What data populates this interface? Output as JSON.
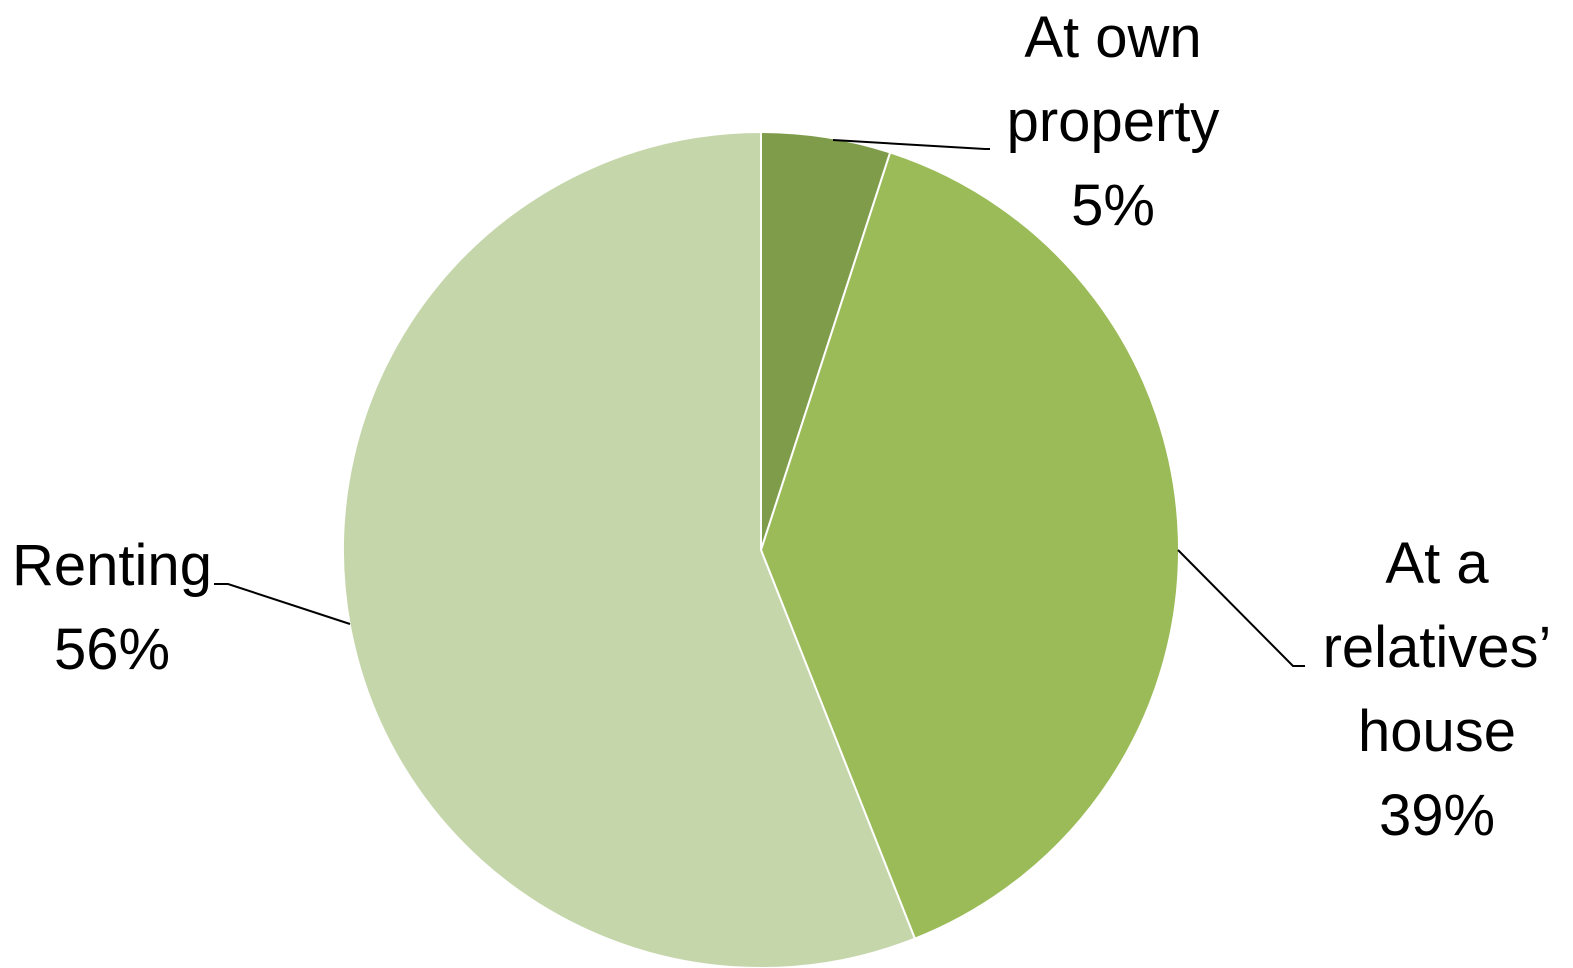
{
  "chart_data": {
    "type": "pie",
    "title": "",
    "start_angle_deg": 0,
    "direction": "clockwise",
    "legend": "none",
    "slices": [
      {
        "label_lines": [
          "At own",
          "property"
        ],
        "value": 5,
        "value_label": "5%",
        "color": "#7f9c4b"
      },
      {
        "label_lines": [
          "At a",
          "relatives’",
          "house"
        ],
        "value": 39,
        "value_label": "39%",
        "color": "#9bbb59"
      },
      {
        "label_lines": [
          "Renting"
        ],
        "value": 56,
        "value_label": "56%",
        "color": "#c5d6ab"
      }
    ]
  }
}
